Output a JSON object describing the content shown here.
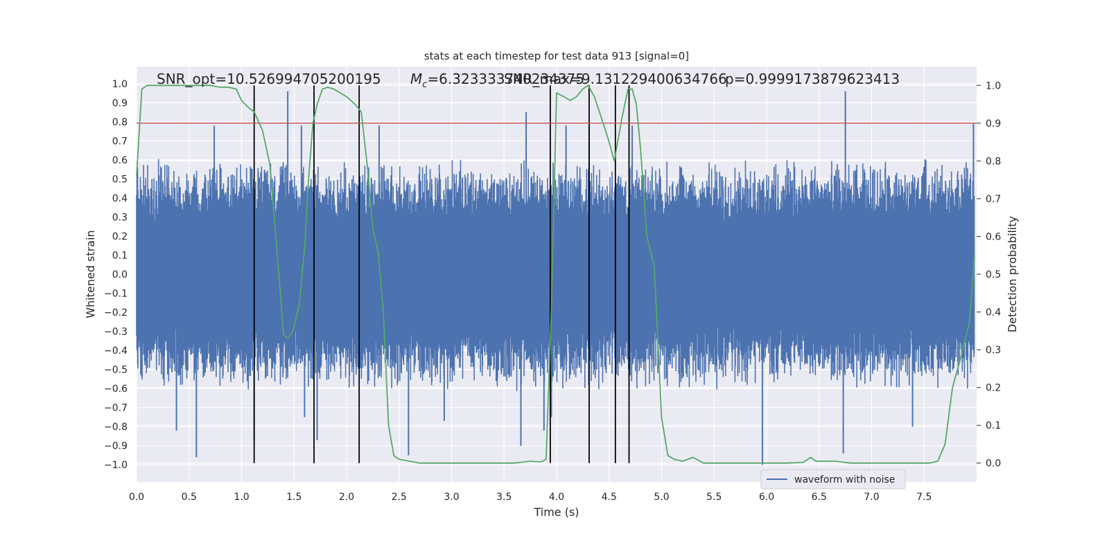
{
  "chart_data": {
    "type": "line",
    "title": "stats at each timestep for test data 913 [signal=0]",
    "annotations": {
      "snr_opt": "SNR_opt=10.526994705200195",
      "mc_symbol": "M",
      "mc_subscript": "c",
      "mc_value": "=6.323333740234375",
      "snr_max": "SNR_max=9.131229400634766",
      "p_value": "p=0.9999173879623413"
    },
    "xlabel": "Time (s)",
    "ylabel": "Whitened strain",
    "ylabel_right": "Detection probability",
    "xlim": [
      0.0,
      8.0
    ],
    "ylim": [
      -1.09,
      1.09
    ],
    "ylim_right": [
      -0.05,
      1.05
    ],
    "xticks": [
      "0.0",
      "0.5",
      "1.0",
      "1.5",
      "2.0",
      "2.5",
      "3.0",
      "3.5",
      "4.0",
      "4.5",
      "5.0",
      "5.5",
      "6.0",
      "6.5",
      "7.0",
      "7.5"
    ],
    "yticks": [
      "1.0",
      "0.9",
      "0.8",
      "0.7",
      "0.6",
      "0.5",
      "0.4",
      "0.3",
      "0.2",
      "0.1",
      "0.0",
      "−0.1",
      "−0.2",
      "−0.3",
      "−0.4",
      "−0.5",
      "−0.6",
      "−0.7",
      "−0.8",
      "−0.9",
      "−1.0"
    ],
    "yticks_right": [
      "1.0",
      "0.9",
      "0.8",
      "0.7",
      "0.6",
      "0.5",
      "0.4",
      "0.3",
      "0.2",
      "0.1",
      "0.0"
    ],
    "grid": true,
    "legend": {
      "position": "lower-right",
      "entries": [
        "waveform with noise"
      ]
    },
    "colors": {
      "waveform": "#4c72b0",
      "probability": "#55a868",
      "threshold": "#c44e52",
      "markers": "#000000",
      "background": "#eaeaf2",
      "grid": "#ffffff"
    },
    "series": [
      {
        "name": "waveform with noise",
        "role": "strain",
        "noise_envelope": 0.35,
        "spikes": [
          {
            "x": 1.44,
            "y": 0.96
          },
          {
            "x": 0.57,
            "y": -0.96
          },
          {
            "x": 2.59,
            "y": -0.95
          },
          {
            "x": 3.66,
            "y": -0.9
          },
          {
            "x": 6.75,
            "y": 0.96
          },
          {
            "x": 6.73,
            "y": -0.94
          },
          {
            "x": 5.96,
            "y": -1.0
          },
          {
            "x": 1.12,
            "y": -0.87
          },
          {
            "x": 1.72,
            "y": -0.87
          },
          {
            "x": 3.88,
            "y": -0.82
          },
          {
            "x": 0.38,
            "y": -0.82
          },
          {
            "x": 7.97,
            "y": 0.79
          },
          {
            "x": 0.74,
            "y": 0.78
          },
          {
            "x": 1.57,
            "y": 0.78
          },
          {
            "x": 3.71,
            "y": 0.85
          },
          {
            "x": 4.09,
            "y": 0.78
          },
          {
            "x": 4.31,
            "y": 0.78
          },
          {
            "x": 2.31,
            "y": 0.78
          },
          {
            "x": 4.72,
            "y": 0.78
          },
          {
            "x": 3.95,
            "y": -0.75
          },
          {
            "x": 1.6,
            "y": -0.75
          },
          {
            "x": 2.93,
            "y": -0.77
          },
          {
            "x": 7.39,
            "y": -0.8
          }
        ]
      },
      {
        "name": "",
        "role": "detection probability",
        "x": [
          0.0,
          0.05,
          0.1,
          0.2,
          0.3,
          0.5,
          0.7,
          0.8,
          0.88,
          0.95,
          1.0,
          1.07,
          1.12,
          1.2,
          1.27,
          1.35,
          1.4,
          1.44,
          1.49,
          1.55,
          1.6,
          1.64,
          1.68,
          1.72,
          1.77,
          1.82,
          1.88,
          1.94,
          2.0,
          2.08,
          2.14,
          2.2,
          2.25,
          2.3,
          2.35,
          2.4,
          2.45,
          2.5,
          2.7,
          3.0,
          3.3,
          3.6,
          3.75,
          3.85,
          3.9,
          3.95,
          4.0,
          4.07,
          4.13,
          4.19,
          4.25,
          4.3,
          4.36,
          4.42,
          4.49,
          4.55,
          4.62,
          4.68,
          4.72,
          4.76,
          4.8,
          4.86,
          4.93,
          5.0,
          5.06,
          5.12,
          5.2,
          5.3,
          5.4,
          5.5,
          5.7,
          6.0,
          6.2,
          6.35,
          6.42,
          6.47,
          6.55,
          6.65,
          6.8,
          7.0,
          7.2,
          7.4,
          7.55,
          7.63,
          7.7,
          7.77,
          7.85,
          7.93,
          7.98
        ],
        "values": [
          0.76,
          0.99,
          1.0,
          1.0,
          1.0,
          1.0,
          1.0,
          0.995,
          0.995,
          0.99,
          0.96,
          0.94,
          0.93,
          0.88,
          0.79,
          0.52,
          0.34,
          0.33,
          0.35,
          0.42,
          0.57,
          0.76,
          0.9,
          0.95,
          0.99,
          0.995,
          0.99,
          0.98,
          0.97,
          0.95,
          0.93,
          0.78,
          0.62,
          0.56,
          0.4,
          0.1,
          0.02,
          0.01,
          0.0,
          0.0,
          0.0,
          0.0,
          0.005,
          0.003,
          0.01,
          0.4,
          0.98,
          0.97,
          0.96,
          0.97,
          0.99,
          1.0,
          0.97,
          0.92,
          0.86,
          0.8,
          0.91,
          0.99,
          0.99,
          0.95,
          0.83,
          0.6,
          0.52,
          0.12,
          0.02,
          0.01,
          0.005,
          0.015,
          0.0,
          0.0,
          0.0,
          0.0,
          0.0,
          0.002,
          0.015,
          0.005,
          0.005,
          0.005,
          0.0,
          0.0,
          0.0,
          0.0,
          0.0,
          0.005,
          0.05,
          0.2,
          0.28,
          0.37,
          0.55
        ]
      }
    ],
    "threshold": {
      "y_right": 0.9
    },
    "marker_lines_x": [
      1.12,
      1.69,
      2.12,
      3.94,
      4.31,
      4.56,
      4.69
    ]
  }
}
